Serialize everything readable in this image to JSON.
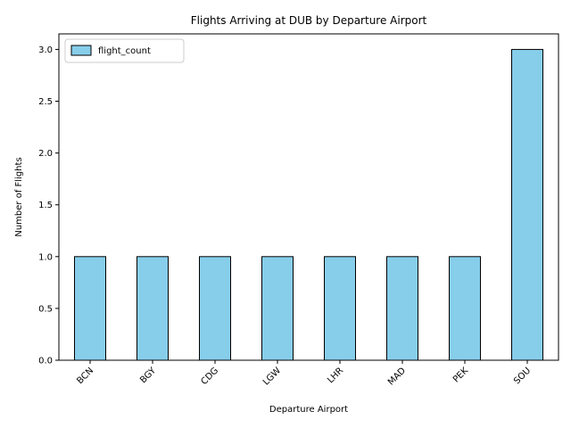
{
  "chart_data": {
    "type": "bar",
    "title": "Flights Arriving at DUB by Departure Airport",
    "xlabel": "Departure Airport",
    "ylabel": "Number of Flights",
    "categories": [
      "BCN",
      "BGY",
      "CDG",
      "LGW",
      "LHR",
      "MAD",
      "PEK",
      "SOU"
    ],
    "series": [
      {
        "name": "flight_count",
        "values": [
          1,
          1,
          1,
          1,
          1,
          1,
          1,
          3
        ]
      }
    ],
    "ylim": [
      0,
      3.15
    ],
    "yticks": [
      "0.0",
      "0.5",
      "1.0",
      "1.5",
      "2.0",
      "2.5",
      "3.0"
    ],
    "grid": false,
    "legend": "top-left",
    "colors": {
      "bar_fill": "#87ceeb",
      "bar_edge": "#000000"
    }
  }
}
